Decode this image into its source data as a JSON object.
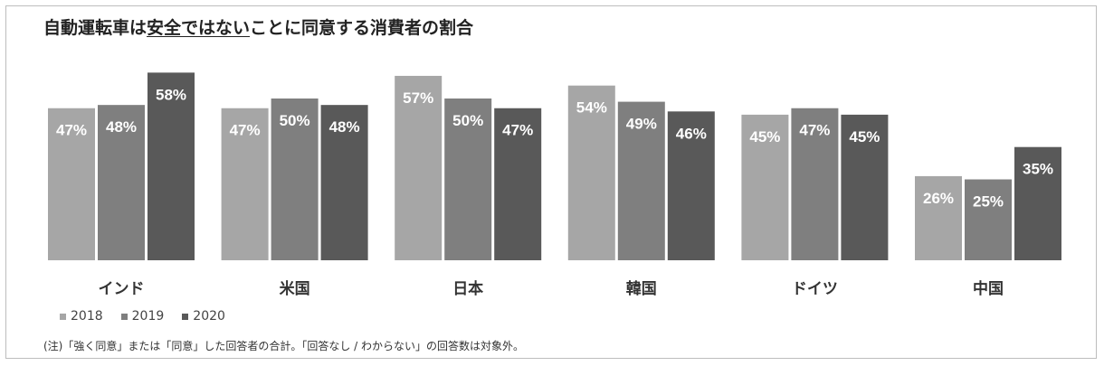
{
  "title_parts": [
    "自動運転車は",
    "安全ではない",
    "ことに同意する消費者の割合"
  ],
  "chart_data": {
    "type": "bar",
    "categories": [
      "インド",
      "米国",
      "日本",
      "韓国",
      "ドイツ",
      "中国"
    ],
    "series": [
      {
        "name": "2018",
        "values": [
          47,
          47,
          57,
          54,
          45,
          26
        ],
        "color": "#a6a6a6"
      },
      {
        "name": "2019",
        "values": [
          48,
          50,
          50,
          49,
          47,
          25
        ],
        "color": "#7f7f7f"
      },
      {
        "name": "2020",
        "values": [
          58,
          48,
          47,
          46,
          45,
          35
        ],
        "color": "#595959"
      }
    ],
    "value_suffix": "%",
    "ylim": [
      0,
      60
    ],
    "legend_position": "bottom-left",
    "grid": false
  },
  "note": "(注)「強く同意」または「同意」した回答者の合計。「回答なし / わからない」の回答数は対象外。"
}
